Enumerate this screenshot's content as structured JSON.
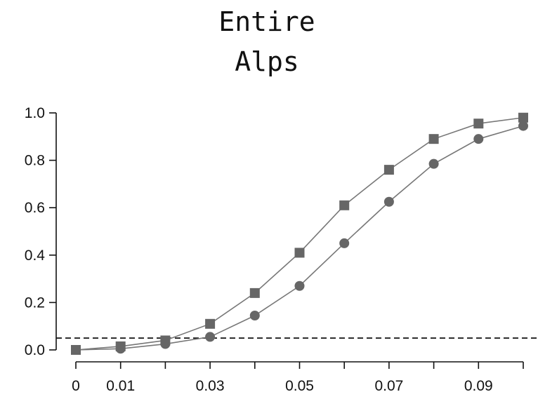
{
  "chart_data": {
    "type": "line",
    "title_lines": [
      "Entire",
      "Alps"
    ],
    "x": [
      0,
      0.01,
      0.02,
      0.03,
      0.04,
      0.05,
      0.06,
      0.07,
      0.08,
      0.09,
      0.1
    ],
    "x_tick_labels": [
      "0",
      "0.01",
      "0.03",
      "0.05",
      "0.07",
      "0.09"
    ],
    "y_tick_labels": [
      "0.0",
      "0.2",
      "0.4",
      "0.6",
      "0.8",
      "1.0"
    ],
    "xlim": [
      0,
      0.1
    ],
    "ylim": [
      0,
      1.0
    ],
    "reference_line_y": 0.05,
    "grid": false,
    "colors": {
      "series_marker": "#666666",
      "series_line": "#777777",
      "axes": "#111111"
    },
    "series": [
      {
        "marker": "square",
        "values": [
          0.0,
          0.015,
          0.04,
          0.11,
          0.24,
          0.41,
          0.61,
          0.76,
          0.89,
          0.955,
          0.98
        ]
      },
      {
        "marker": "circle",
        "values": [
          0.0,
          0.005,
          0.025,
          0.055,
          0.145,
          0.27,
          0.45,
          0.625,
          0.785,
          0.89,
          0.945
        ]
      }
    ]
  }
}
